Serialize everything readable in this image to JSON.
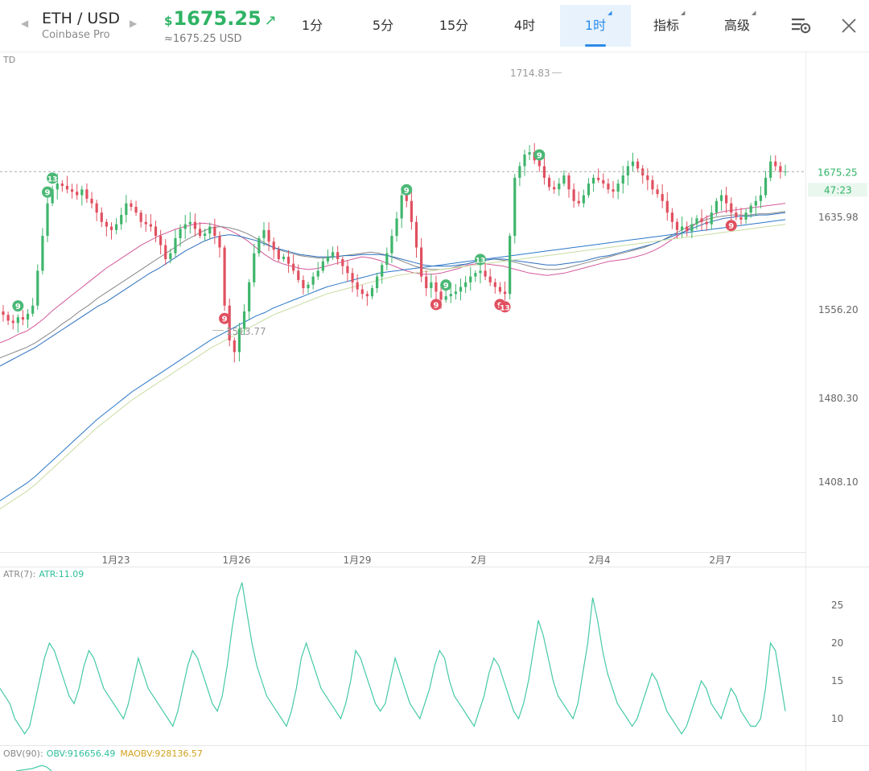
{
  "header": {
    "pair": "ETH / USD",
    "exchange": "Coinbase Pro",
    "currency_symbol": "$",
    "price": "1675.25",
    "price_converted": "≈1675.25 USD",
    "timeframes": [
      "1分",
      "5分",
      "15分",
      "4时",
      "1时"
    ],
    "active_timeframe": "1时",
    "menus": [
      "指标",
      "高级"
    ],
    "icons": [
      "chart-settings-icon",
      "close-icon",
      "prev-arrow-icon",
      "next-arrow-icon",
      "price-up-arrow-icon"
    ],
    "colors": {
      "up": "#2eb364",
      "active": "#2c8be8"
    }
  },
  "main_chart": {
    "indicator_label": "TD",
    "last_price_label": "1675.25",
    "countdown_label": "47:23",
    "high_label": "1714.83",
    "low_label": "1513.77",
    "y_ticks": [
      1635.98,
      1556.2,
      1480.3,
      1408.1
    ],
    "y_tick_labels": [
      "1635.98",
      "1556.20",
      "1480.30",
      "1408.10"
    ],
    "x_labels": [
      "1月23",
      "1月26",
      "1月29",
      "2月",
      "2月4",
      "2月7"
    ]
  },
  "atr_panel": {
    "label_prefix": "ATR(7):",
    "label_value": "ATR:11.09",
    "y_ticks": [
      25,
      20,
      15,
      10
    ],
    "y_tick_labels": [
      "25",
      "20",
      "15",
      "10"
    ]
  },
  "obv_panel": {
    "label_prefix": "OBV(90):",
    "obv_value": "OBV:916656.49",
    "maobv_value": "MAOBV:928136.57"
  },
  "chart_data": {
    "type": "line",
    "title": "",
    "candles_close": [
      1552,
      1547,
      1545,
      1550,
      1548,
      1553,
      1560,
      1590,
      1620,
      1648,
      1660,
      1665,
      1663,
      1660,
      1658,
      1655,
      1660,
      1652,
      1648,
      1640,
      1632,
      1628,
      1625,
      1630,
      1638,
      1648,
      1645,
      1640,
      1632,
      1630,
      1628,
      1620,
      1612,
      1600,
      1605,
      1618,
      1626,
      1630,
      1632,
      1626,
      1620,
      1622,
      1628,
      1620,
      1610,
      1560,
      1530,
      1520,
      1540,
      1555,
      1580,
      1605,
      1618,
      1625,
      1615,
      1608,
      1600,
      1602,
      1596,
      1590,
      1582,
      1575,
      1578,
      1585,
      1590,
      1598,
      1602,
      1606,
      1600,
      1594,
      1588,
      1580,
      1574,
      1570,
      1568,
      1575,
      1585,
      1595,
      1605,
      1620,
      1635,
      1655,
      1650,
      1632,
      1610,
      1585,
      1575,
      1580,
      1572,
      1565,
      1568,
      1570,
      1572,
      1576,
      1580,
      1585,
      1588,
      1590,
      1585,
      1580,
      1576,
      1572,
      1570,
      1620,
      1670,
      1680,
      1690,
      1692,
      1685,
      1680,
      1670,
      1662,
      1660,
      1665,
      1672,
      1660,
      1650,
      1648,
      1655,
      1665,
      1670,
      1668,
      1665,
      1660,
      1658,
      1665,
      1672,
      1680,
      1684,
      1678,
      1672,
      1668,
      1660,
      1656,
      1650,
      1640,
      1632,
      1625,
      1628,
      1624,
      1630,
      1635,
      1632,
      1630,
      1640,
      1650,
      1655,
      1648,
      1640,
      1636,
      1634,
      1640,
      1646,
      1650,
      1655,
      1670,
      1684,
      1680,
      1675,
      1675.25
    ],
    "high": 1714.83,
    "low": 1513.77,
    "last": 1675.25,
    "moving_averages": [
      {
        "color": "#d35a9a",
        "values": [
          1528,
          1531,
          1535,
          1538,
          1543,
          1549,
          1556,
          1562,
          1568,
          1574,
          1580,
          1586,
          1592,
          1597,
          1602,
          1607,
          1612,
          1616,
          1620,
          1623,
          1626,
          1628,
          1630,
          1631,
          1630,
          1628,
          1625,
          1621,
          1616,
          1610,
          1604,
          1599,
          1596,
          1594,
          1592,
          1591,
          1592,
          1594,
          1596,
          1598,
          1600,
          1602,
          1601,
          1599,
          1596,
          1593,
          1590,
          1588,
          1587,
          1587,
          1588,
          1590,
          1592,
          1595,
          1596,
          1596,
          1595,
          1594,
          1592,
          1590,
          1588,
          1587,
          1586,
          1587,
          1588,
          1590,
          1592,
          1594,
          1596,
          1598,
          1599,
          1600,
          1602,
          1604,
          1607,
          1611,
          1616,
          1621,
          1626,
          1631,
          1636,
          1639,
          1641,
          1642,
          1643,
          1644,
          1645,
          1646,
          1647,
          1648
        ]
      },
      {
        "color": "#888888",
        "values": [
          1515,
          1518,
          1521,
          1524,
          1528,
          1533,
          1538,
          1544,
          1549,
          1555,
          1560,
          1566,
          1571,
          1576,
          1581,
          1586,
          1591,
          1596,
          1601,
          1606,
          1611,
          1616,
          1620,
          1624,
          1627,
          1628,
          1627,
          1625,
          1622,
          1618,
          1614,
          1610,
          1607,
          1605,
          1603,
          1602,
          1601,
          1601,
          1602,
          1603,
          1604,
          1605,
          1606,
          1605,
          1603,
          1600,
          1597,
          1594,
          1592,
          1591,
          1591,
          1592,
          1594,
          1596,
          1598,
          1599,
          1600,
          1599,
          1598,
          1596,
          1594,
          1592,
          1591,
          1591,
          1592,
          1594,
          1596,
          1598,
          1600,
          1602,
          1604,
          1606,
          1608,
          1610,
          1613,
          1616,
          1620,
          1624,
          1628,
          1631,
          1634,
          1636,
          1637,
          1638,
          1638,
          1638,
          1639,
          1639,
          1640,
          1641
        ]
      },
      {
        "color": "#2c6fbe",
        "values": [
          1508,
          1512,
          1516,
          1520,
          1524,
          1529,
          1534,
          1539,
          1544,
          1549,
          1554,
          1559,
          1563,
          1568,
          1573,
          1578,
          1583,
          1588,
          1592,
          1597,
          1602,
          1607,
          1611,
          1615,
          1618,
          1620,
          1621,
          1620,
          1618,
          1616,
          1613,
          1610,
          1608,
          1606,
          1604,
          1603,
          1602,
          1602,
          1602,
          1603,
          1603,
          1604,
          1604,
          1604,
          1603,
          1601,
          1599,
          1597,
          1595,
          1594,
          1594,
          1594,
          1595,
          1596,
          1598,
          1599,
          1600,
          1600,
          1599,
          1598,
          1597,
          1596,
          1595,
          1595,
          1596,
          1597,
          1598,
          1600,
          1602,
          1603,
          1605,
          1607,
          1609,
          1611,
          1613,
          1616,
          1619,
          1622,
          1625,
          1628,
          1631,
          1633,
          1635,
          1636,
          1637,
          1637,
          1638,
          1638,
          1639,
          1640
        ]
      },
      {
        "color": "#2a78c8",
        "values": [
          1392,
          1397,
          1402,
          1407,
          1413,
          1420,
          1427,
          1434,
          1441,
          1448,
          1455,
          1462,
          1468,
          1474,
          1480,
          1486,
          1491,
          1496,
          1501,
          1506,
          1511,
          1516,
          1521,
          1526,
          1531,
          1535,
          1539,
          1543,
          1547,
          1551,
          1554,
          1558,
          1561,
          1564,
          1567,
          1570,
          1573,
          1576,
          1578,
          1580,
          1582,
          1584,
          1586,
          1588,
          1589,
          1590,
          1591,
          1592,
          1593,
          1594,
          1595,
          1596,
          1597,
          1598,
          1599,
          1600,
          1601,
          1602,
          1603,
          1604,
          1605,
          1606,
          1607,
          1608,
          1609,
          1610,
          1611,
          1612,
          1613,
          1614,
          1615,
          1616,
          1617,
          1618,
          1619,
          1620,
          1621,
          1622,
          1623,
          1624,
          1625,
          1626,
          1627,
          1628,
          1629,
          1630,
          1631,
          1632,
          1633,
          1634
        ]
      },
      {
        "color": "#c9dca2",
        "values": [
          1385,
          1390,
          1395,
          1400,
          1406,
          1413,
          1420,
          1427,
          1434,
          1441,
          1448,
          1455,
          1461,
          1467,
          1473,
          1479,
          1484,
          1489,
          1494,
          1499,
          1504,
          1509,
          1514,
          1519,
          1524,
          1528,
          1532,
          1536,
          1540,
          1544,
          1548,
          1552,
          1555,
          1558,
          1561,
          1564,
          1567,
          1570,
          1572,
          1574,
          1576,
          1578,
          1580,
          1582,
          1584,
          1586,
          1587,
          1588,
          1589,
          1590,
          1591,
          1592,
          1593,
          1594,
          1595,
          1596,
          1597,
          1598,
          1599,
          1600,
          1601,
          1602,
          1603,
          1604,
          1605,
          1606,
          1607,
          1608,
          1609,
          1610,
          1611,
          1612,
          1613,
          1614,
          1615,
          1616,
          1617,
          1618,
          1619,
          1620,
          1621,
          1622,
          1623,
          1624,
          1625,
          1626,
          1627,
          1628,
          1629,
          1630
        ]
      }
    ],
    "td_markers": [
      {
        "i": 3,
        "label": "9",
        "color": "#4cb876"
      },
      {
        "i": 10,
        "label": "13",
        "color": "#4cb876"
      },
      {
        "i": 9,
        "label": "9",
        "color": "#4cb876"
      },
      {
        "i": 45,
        "label": "9",
        "color": "#e05060"
      },
      {
        "i": 82,
        "label": "9",
        "color": "#4cb876"
      },
      {
        "i": 90,
        "label": "9",
        "color": "#4cb876"
      },
      {
        "i": 97,
        "label": "13",
        "color": "#4cb876"
      },
      {
        "i": 88,
        "label": "9",
        "color": "#e05060"
      },
      {
        "i": 101,
        "label": "9",
        "color": "#e05060"
      },
      {
        "i": 102,
        "label": "13",
        "color": "#e05060"
      },
      {
        "i": 109,
        "label": "9",
        "color": "#4cb876"
      },
      {
        "i": 148,
        "label": "9",
        "color": "#e05060"
      }
    ],
    "atr_values": [
      14,
      13,
      12,
      10,
      9,
      8,
      9,
      12,
      15,
      18,
      20,
      19,
      17,
      15,
      13,
      12,
      14,
      17,
      19,
      18,
      16,
      14,
      13,
      12,
      11,
      10,
      12,
      15,
      18,
      16,
      14,
      13,
      12,
      11,
      10,
      9,
      11,
      14,
      17,
      19,
      18,
      16,
      14,
      12,
      11,
      13,
      17,
      22,
      26,
      28,
      24,
      20,
      17,
      15,
      13,
      12,
      11,
      10,
      9,
      11,
      14,
      18,
      20,
      18,
      16,
      14,
      13,
      12,
      11,
      10,
      12,
      15,
      19,
      18,
      16,
      14,
      12,
      11,
      12,
      15,
      18,
      16,
      14,
      12,
      11,
      10,
      12,
      14,
      17,
      19,
      18,
      15,
      13,
      12,
      11,
      10,
      9,
      11,
      13,
      16,
      18,
      17,
      15,
      13,
      11,
      10,
      12,
      15,
      19,
      23,
      21,
      18,
      15,
      13,
      12,
      11,
      10,
      12,
      16,
      20,
      26,
      23,
      19,
      16,
      14,
      12,
      11,
      10,
      9,
      10,
      12,
      14,
      16,
      15,
      13,
      11,
      10,
      9,
      8,
      9,
      11,
      13,
      15,
      14,
      12,
      11,
      10,
      12,
      14,
      13,
      11,
      10,
      9,
      9,
      10,
      14,
      20,
      19,
      15,
      11
    ]
  }
}
